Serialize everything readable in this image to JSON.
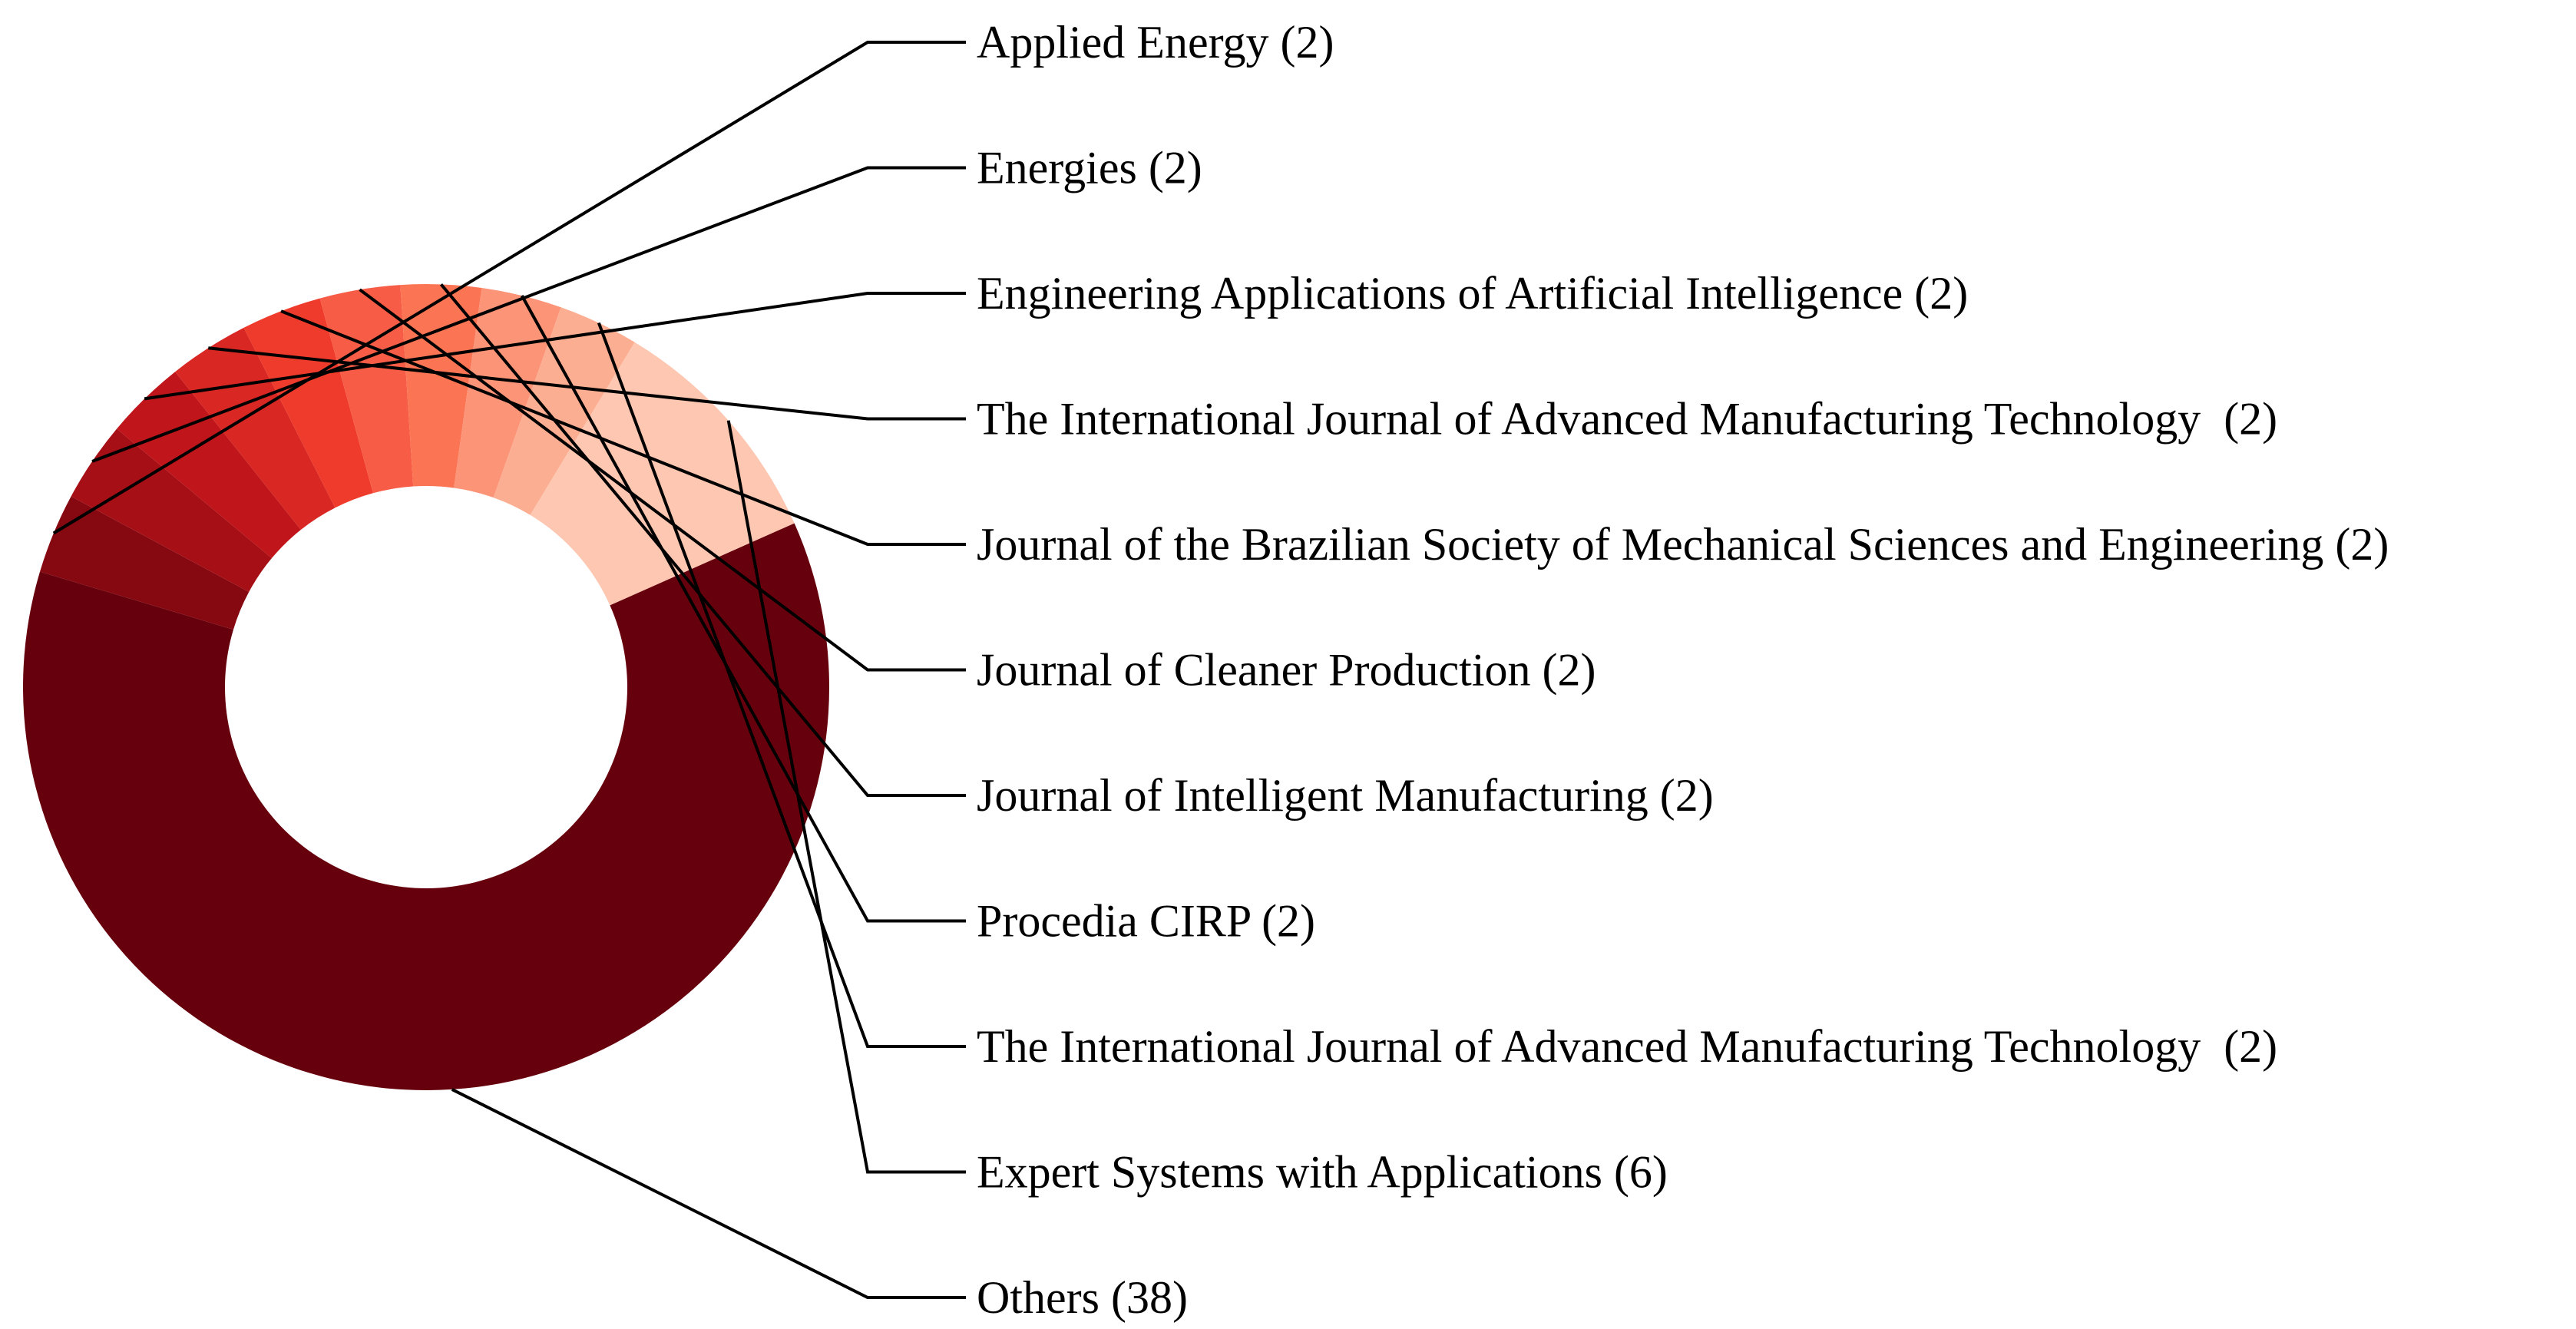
{
  "chart_data": {
    "type": "pie",
    "variant": "donut",
    "legend": "none",
    "labels_format": "name (count)",
    "slices": [
      {
        "name": "Others",
        "value": 38,
        "label": "Others (38)",
        "color": "#67000d"
      },
      {
        "name": "Applied Energy",
        "value": 2,
        "label": "Applied Energy (2)",
        "color": "#860811"
      },
      {
        "name": "Energies",
        "value": 2,
        "label": "Energies (2)",
        "color": "#a50f15"
      },
      {
        "name": "Engineering Applications of Artificial Intelligence",
        "value": 2,
        "label": "Engineering Applications of Artificial Intelligence (2)",
        "color": "#c0151b"
      },
      {
        "name": "The International Journal of Advanced Manufacturing Technology",
        "value": 2,
        "label": "The International Journal of Advanced Manufacturing Technology  (2)",
        "color": "#d92723"
      },
      {
        "name": "Journal of the Brazilian Society of Mechanical Sciences and Engineering",
        "value": 2,
        "label": "Journal of the Brazilian Society of Mechanical Sciences and Engineering (2)",
        "color": "#ef3b2c"
      },
      {
        "name": "Journal of Cleaner Production",
        "value": 2,
        "label": "Journal of Cleaner Production (2)",
        "color": "#f75d46"
      },
      {
        "name": "Journal of Intelligent Manufacturing",
        "value": 2,
        "label": "Journal of Intelligent Manufacturing (2)",
        "color": "#fb7555"
      },
      {
        "name": "Procedia CIRP",
        "value": 2,
        "label": "Procedia CIRP (2)",
        "color": "#fc9478"
      },
      {
        "name": "The International Journal of Advanced Manufacturing Technology",
        "value": 2,
        "label": "The International Journal of Advanced Manufacturing Technology  (2)",
        "color": "#fcae92"
      },
      {
        "name": "Expert Systems with Applications",
        "value": 6,
        "label": "Expert Systems with Applications (6)",
        "color": "#fdc7b2"
      }
    ],
    "label_order": [
      1,
      2,
      3,
      4,
      5,
      6,
      7,
      8,
      9,
      10,
      0
    ]
  }
}
